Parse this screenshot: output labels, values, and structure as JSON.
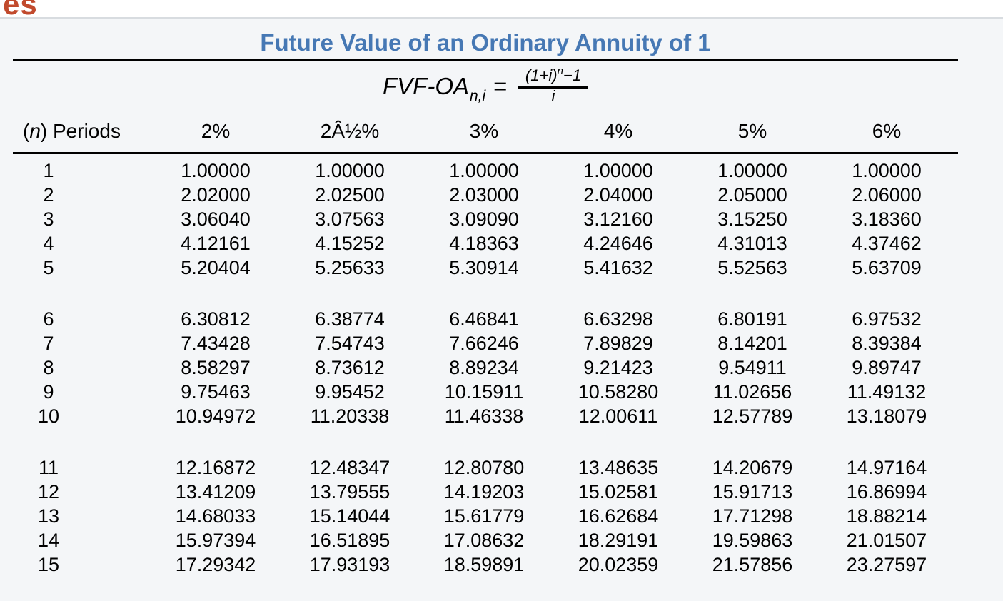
{
  "corner_fragment": "es",
  "table": {
    "title": "Future Value of an Ordinary Annuity of 1",
    "formula": {
      "lhs": "FVF-OA",
      "subscript": "n,i",
      "equals": "=",
      "numerator_open": "(1+",
      "numerator_var": "i",
      "numerator_close": ")",
      "numerator_exponent": "n",
      "numerator_tail": "−1",
      "denominator": "i"
    },
    "period_header": {
      "open": "(",
      "var": "n",
      "rest": ") Periods"
    },
    "rates": [
      "2%",
      "2Â½%",
      "3%",
      "4%",
      "5%",
      "6%"
    ],
    "row_groups": [
      [
        {
          "n": "1",
          "values": [
            "1.00000",
            "1.00000",
            "1.00000",
            "1.00000",
            "1.00000",
            "1.00000"
          ]
        },
        {
          "n": "2",
          "values": [
            "2.02000",
            "2.02500",
            "2.03000",
            "2.04000",
            "2.05000",
            "2.06000"
          ]
        },
        {
          "n": "3",
          "values": [
            "3.06040",
            "3.07563",
            "3.09090",
            "3.12160",
            "3.15250",
            "3.18360"
          ]
        },
        {
          "n": "4",
          "values": [
            "4.12161",
            "4.15252",
            "4.18363",
            "4.24646",
            "4.31013",
            "4.37462"
          ]
        },
        {
          "n": "5",
          "values": [
            "5.20404",
            "5.25633",
            "5.30914",
            "5.41632",
            "5.52563",
            "5.63709"
          ]
        }
      ],
      [
        {
          "n": "6",
          "values": [
            "6.30812",
            "6.38774",
            "6.46841",
            "6.63298",
            "6.80191",
            "6.97532"
          ]
        },
        {
          "n": "7",
          "values": [
            "7.43428",
            "7.54743",
            "7.66246",
            "7.89829",
            "8.14201",
            "8.39384"
          ]
        },
        {
          "n": "8",
          "values": [
            "8.58297",
            "8.73612",
            "8.89234",
            "9.21423",
            "9.54911",
            "9.89747"
          ]
        },
        {
          "n": "9",
          "values": [
            "9.75463",
            "9.95452",
            "10.15911",
            "10.58280",
            "11.02656",
            "11.49132"
          ]
        },
        {
          "n": "10",
          "values": [
            "10.94972",
            "11.20338",
            "11.46338",
            "12.00611",
            "12.57789",
            "13.18079"
          ]
        }
      ],
      [
        {
          "n": "11",
          "values": [
            "12.16872",
            "12.48347",
            "12.80780",
            "13.48635",
            "14.20679",
            "14.97164"
          ]
        },
        {
          "n": "12",
          "values": [
            "13.41209",
            "13.79555",
            "14.19203",
            "15.02581",
            "15.91713",
            "16.86994"
          ]
        },
        {
          "n": "13",
          "values": [
            "14.68033",
            "15.14044",
            "15.61779",
            "16.62684",
            "17.71298",
            "18.88214"
          ]
        },
        {
          "n": "14",
          "values": [
            "15.97394",
            "16.51895",
            "17.08632",
            "18.29191",
            "19.59863",
            "21.01507"
          ]
        },
        {
          "n": "15",
          "values": [
            "17.29342",
            "17.93193",
            "18.59891",
            "20.02359",
            "21.57856",
            "23.27597"
          ]
        }
      ]
    ]
  },
  "colors": {
    "title_blue": "#4678b4",
    "corner_orange": "#c14a2d",
    "panel_bg": "#f4f6f8",
    "rule_black": "#000000"
  }
}
